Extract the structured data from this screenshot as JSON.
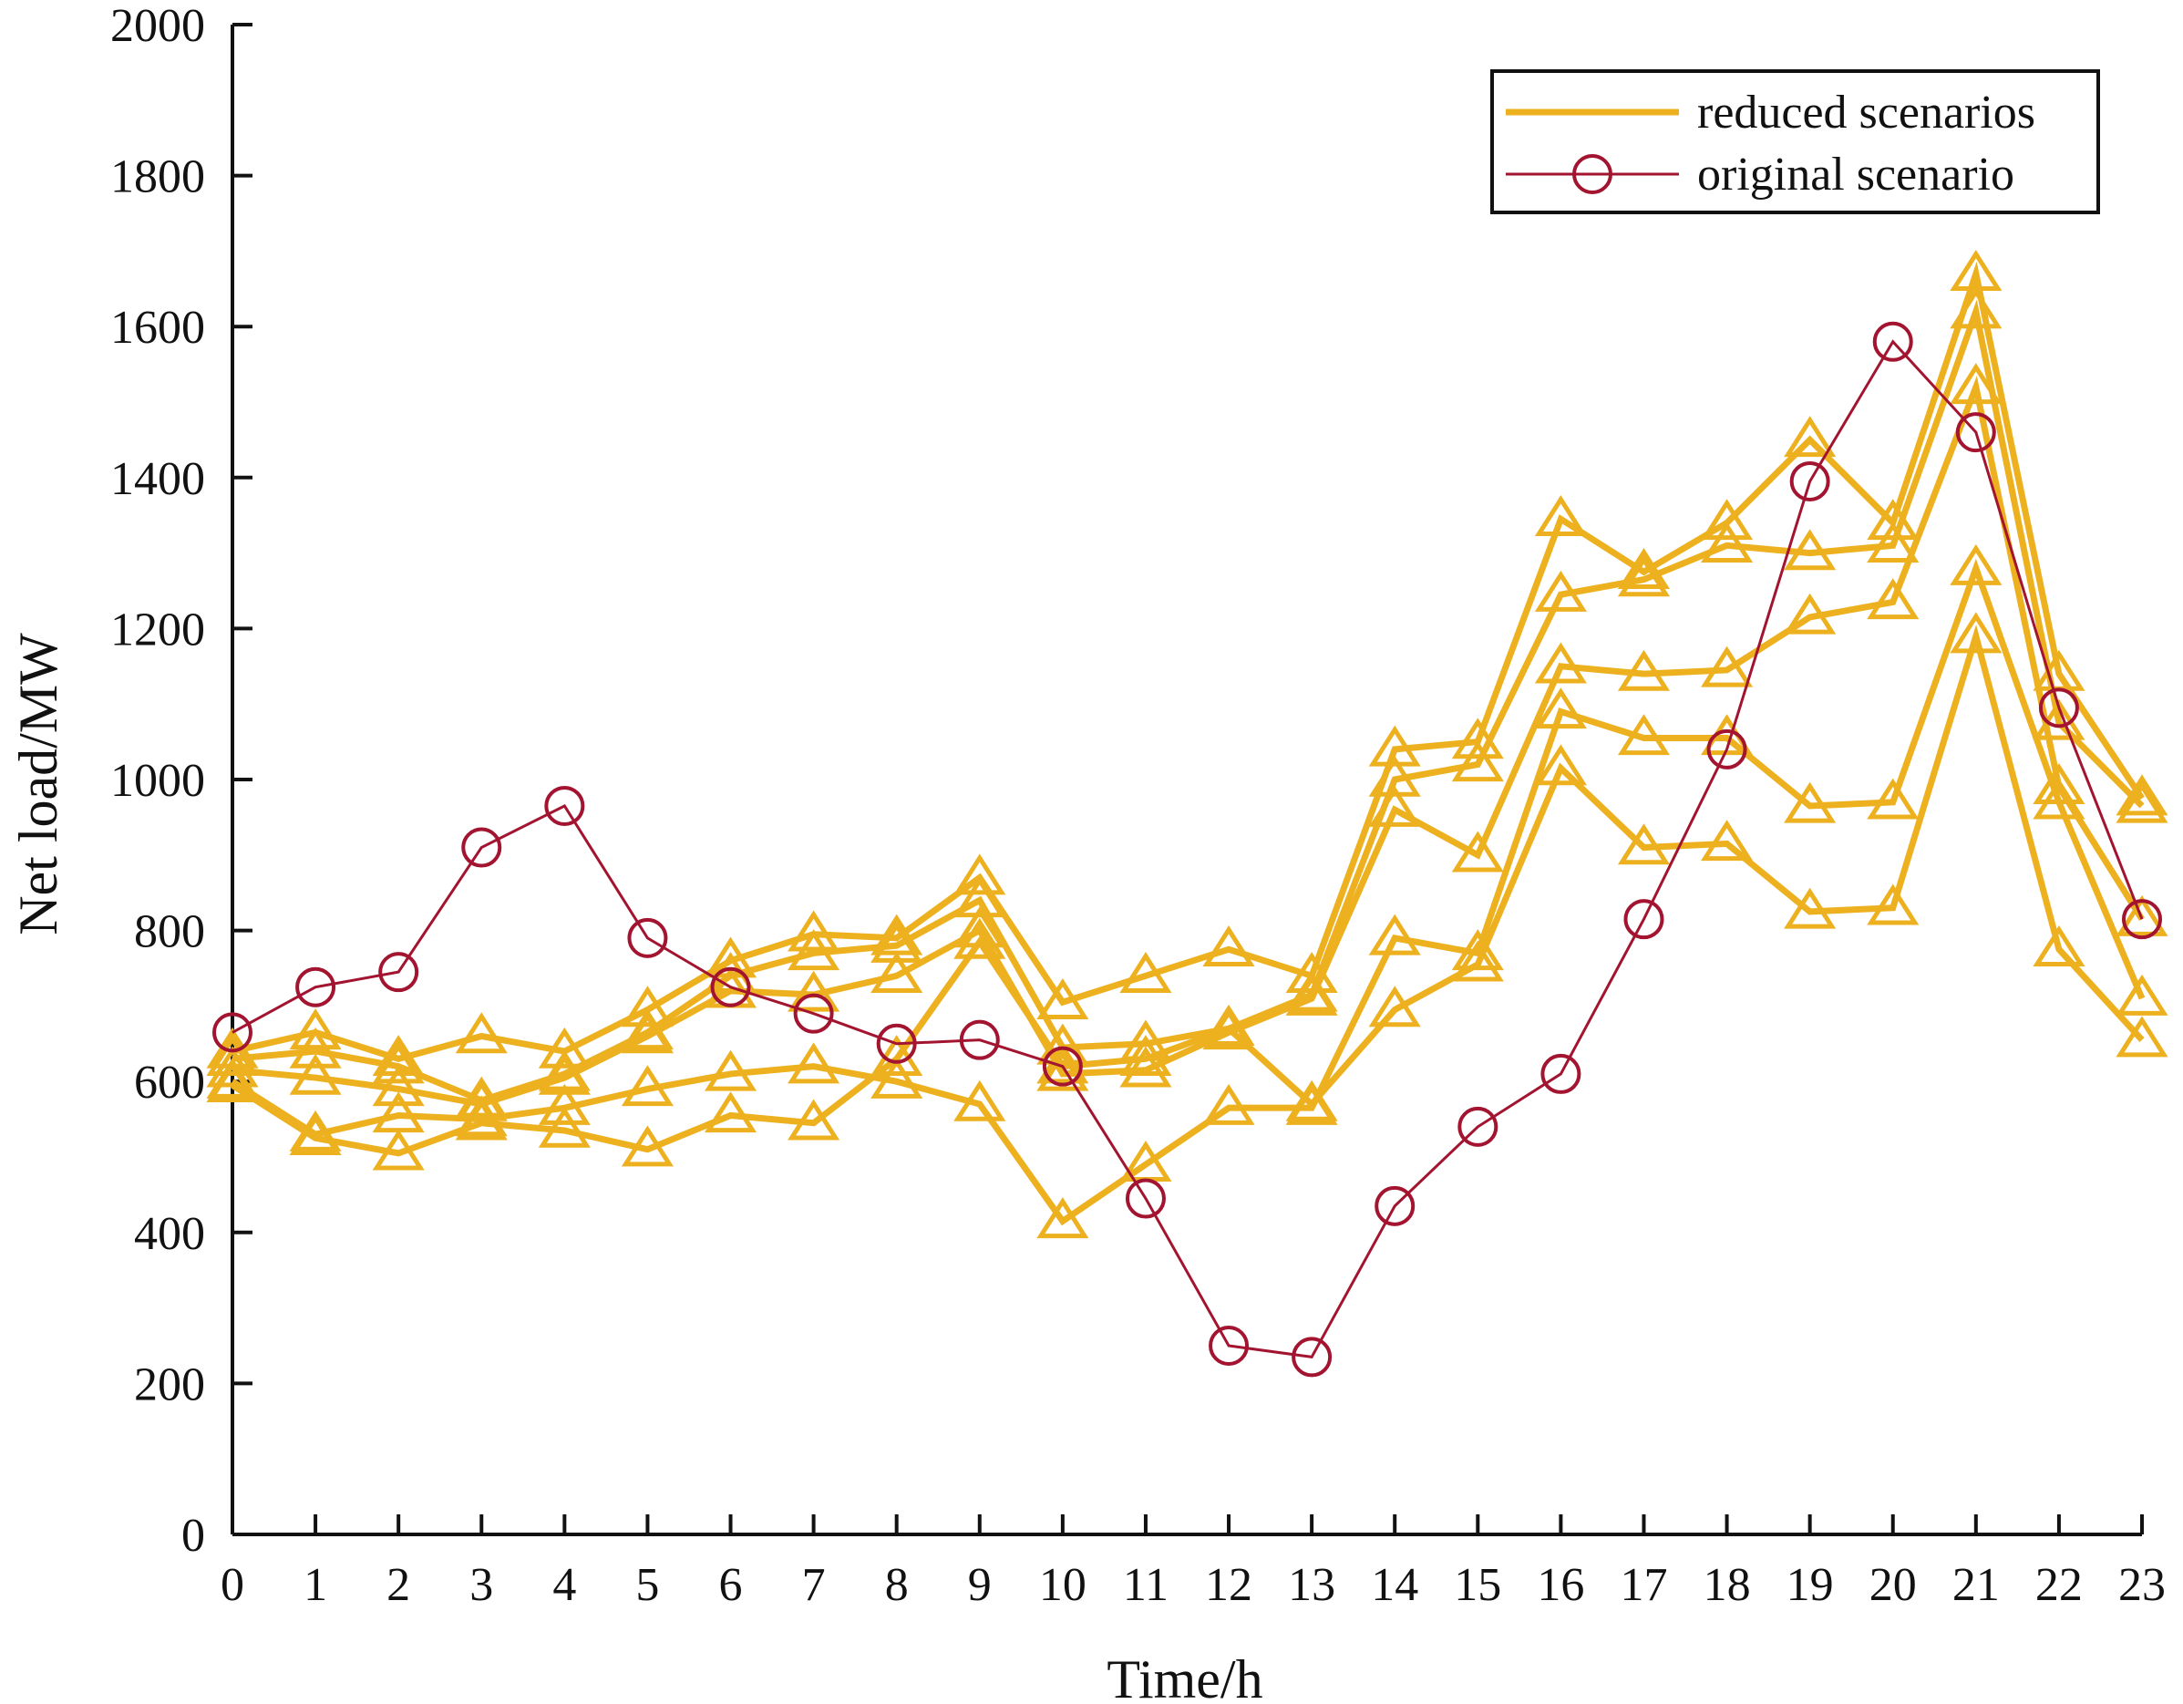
{
  "chart_data": {
    "type": "line",
    "title": "",
    "xlabel": "Time/h",
    "ylabel": "Net load/MW",
    "xlim": [
      0,
      23
    ],
    "ylim": [
      0,
      2000
    ],
    "x": [
      0,
      1,
      2,
      3,
      4,
      5,
      6,
      7,
      8,
      9,
      10,
      11,
      12,
      13,
      14,
      15,
      16,
      17,
      18,
      19,
      20,
      21,
      22,
      23
    ],
    "xticks": [
      "0",
      "1",
      "2",
      "3",
      "4",
      "5",
      "6",
      "7",
      "8",
      "9",
      "10",
      "11",
      "12",
      "13",
      "14",
      "15",
      "16",
      "17",
      "18",
      "19",
      "20",
      "21",
      "22",
      "23"
    ],
    "yticks": [
      "0",
      "200",
      "400",
      "600",
      "800",
      "1000",
      "1200",
      "1400",
      "1600",
      "1800",
      "2000"
    ],
    "grid": false,
    "legend_position": "top-right",
    "legend": {
      "reduced_label": "reduced scenarios",
      "original_label": "original scenario"
    },
    "colors": {
      "reduced": "#EDB120",
      "original": "#A2142F",
      "axis": "#111111"
    },
    "series": [
      {
        "name": "reduced scenario 1",
        "group": "reduced",
        "marker": "triangle",
        "values": [
          640,
          665,
          630,
          660,
          640,
          695,
          760,
          795,
          790,
          870,
          705,
          740,
          775,
          740,
          1040,
          1050,
          1345,
          1275,
          1340,
          1450,
          1340,
          1670,
          1140,
          975
        ]
      },
      {
        "name": "reduced scenario 2",
        "group": "reduced",
        "marker": "triangle",
        "values": [
          630,
          640,
          620,
          575,
          610,
          665,
          740,
          770,
          780,
          840,
          645,
          650,
          670,
          715,
          1000,
          1020,
          1245,
          1265,
          1310,
          1300,
          1310,
          1620,
          1075,
          965
        ]
      },
      {
        "name": "reduced scenario 3",
        "group": "reduced",
        "marker": "triangle",
        "values": [
          615,
          605,
          590,
          570,
          605,
          660,
          720,
          715,
          740,
          800,
          610,
          615,
          665,
          710,
          960,
          900,
          1150,
          1140,
          1145,
          1215,
          1235,
          1520,
          990,
          815
        ]
      },
      {
        "name": "reduced scenario 4",
        "group": "reduced",
        "marker": "triangle",
        "values": [
          600,
          530,
          555,
          550,
          565,
          590,
          610,
          620,
          600,
          570,
          415,
          490,
          565,
          565,
          790,
          770,
          1090,
          1055,
          1055,
          965,
          970,
          1280,
          970,
          710
        ]
      },
      {
        "name": "reduced scenario 5",
        "group": "reduced",
        "marker": "triangle",
        "values": [
          595,
          525,
          505,
          545,
          535,
          510,
          555,
          545,
          630,
          785,
          620,
          630,
          670,
          570,
          695,
          755,
          1015,
          910,
          915,
          825,
          830,
          1190,
          775,
          655
        ]
      },
      {
        "name": "original scenario",
        "group": "original",
        "marker": "circle",
        "values": [
          665,
          725,
          745,
          910,
          965,
          790,
          725,
          690,
          650,
          655,
          620,
          445,
          250,
          235,
          435,
          540,
          610,
          815,
          1040,
          1395,
          1580,
          1460,
          1095,
          815
        ]
      }
    ]
  }
}
